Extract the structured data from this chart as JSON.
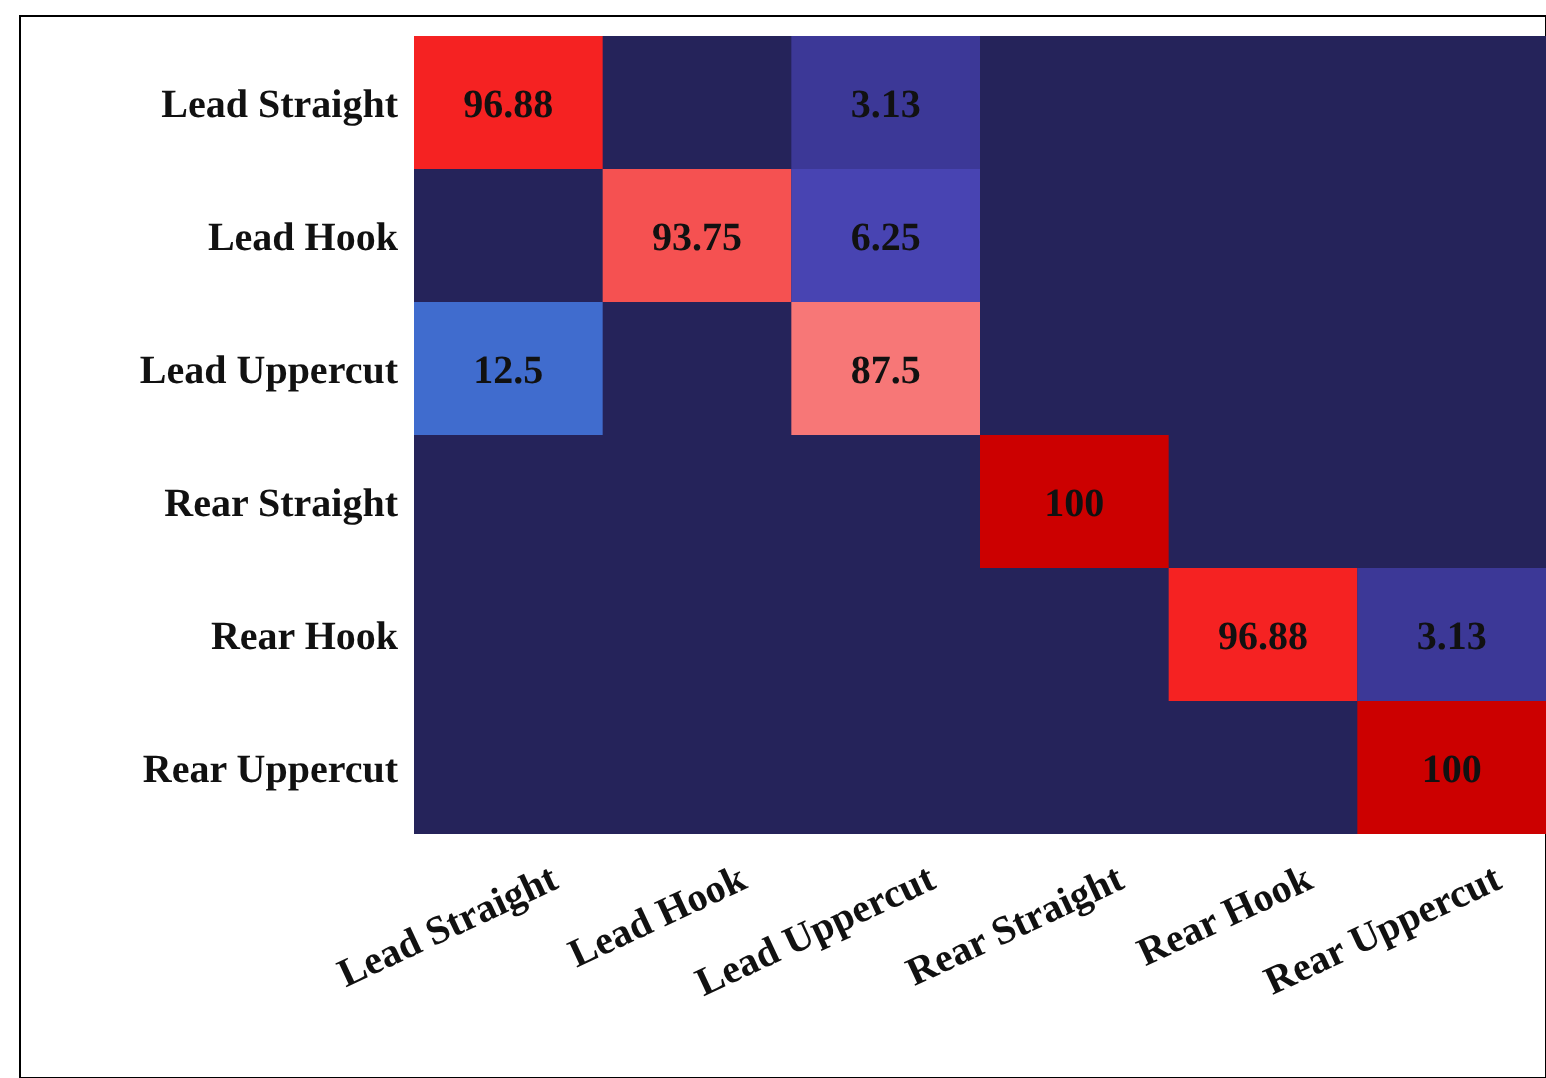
{
  "chart_data": {
    "type": "heatmap",
    "data_labels": true,
    "categories": [
      "Lead Straight",
      "Lead Hook",
      "Lead Uppercut",
      "Rear Straight",
      "Rear Hook",
      "Rear Uppercut"
    ],
    "y_categories": [
      "Lead Straight",
      "Lead Hook",
      "Lead Uppercut",
      "Rear Straight",
      "Rear Hook",
      "Rear Uppercut"
    ],
    "cells": [
      [
        96.88,
        null,
        3.13,
        null,
        null,
        null
      ],
      [
        null,
        93.75,
        6.25,
        null,
        null,
        null
      ],
      [
        12.5,
        null,
        87.5,
        null,
        null,
        null
      ],
      [
        null,
        null,
        null,
        100,
        null,
        null
      ],
      [
        null,
        null,
        null,
        null,
        96.88,
        3.13
      ],
      [
        null,
        null,
        null,
        null,
        null,
        100
      ]
    ]
  }
}
